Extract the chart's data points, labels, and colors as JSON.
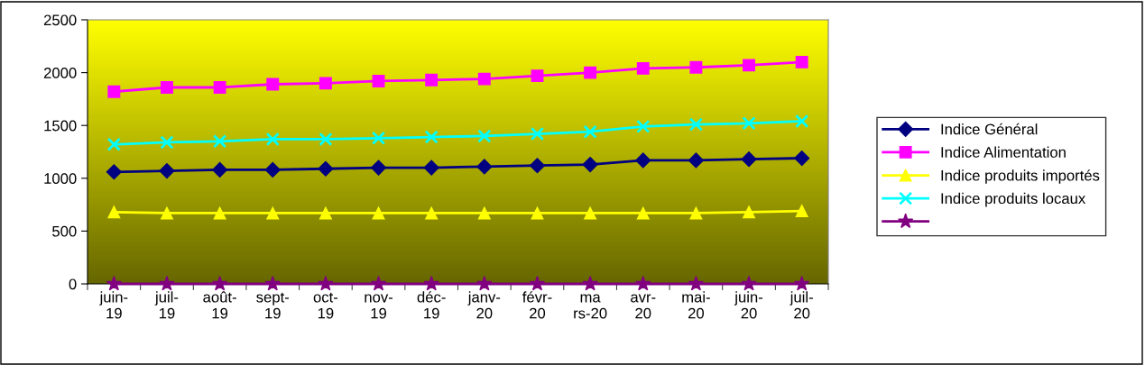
{
  "chart_data": {
    "type": "line",
    "categories": [
      "juin-\n19",
      "juil-\n19",
      "août-\n19",
      "sept-\n19",
      "oct-\n19",
      "nov-\n19",
      "déc-\n19",
      "janv-\n20",
      "févr-\n20",
      "ma\nrs-20",
      "avr-\n20",
      "mai-\n20",
      "juin-\n20",
      "juil-\n20"
    ],
    "series": [
      {
        "name": "Indice Général",
        "color": "#000080",
        "marker": "diamond",
        "values": [
          1060,
          1070,
          1080,
          1080,
          1090,
          1100,
          1100,
          1110,
          1120,
          1130,
          1170,
          1170,
          1180,
          1190
        ]
      },
      {
        "name": "Indice Alimentation",
        "color": "#ff00ff",
        "marker": "square",
        "values": [
          1820,
          1860,
          1860,
          1890,
          1900,
          1920,
          1930,
          1940,
          1970,
          2000,
          2040,
          2050,
          2070,
          2100
        ]
      },
      {
        "name": "Indice produits importés",
        "color": "#ffff00",
        "marker": "triangle",
        "values": [
          680,
          670,
          670,
          670,
          670,
          670,
          670,
          670,
          670,
          670,
          670,
          670,
          680,
          690
        ]
      },
      {
        "name": "Indice produits locaux",
        "color": "#00ffff",
        "marker": "cross",
        "values": [
          1320,
          1340,
          1350,
          1370,
          1370,
          1380,
          1390,
          1400,
          1420,
          1440,
          1490,
          1510,
          1520,
          1540
        ]
      },
      {
        "color": "#800080",
        "marker": "star",
        "values": [
          0,
          0,
          0,
          0,
          0,
          0,
          0,
          0,
          0,
          0,
          0,
          0,
          0,
          0
        ]
      }
    ],
    "ylim": [
      0,
      2500
    ],
    "yticks": [
      0,
      500,
      1000,
      1500,
      2000,
      2500
    ],
    "grid": false,
    "legend": "right",
    "line_style": "solid"
  }
}
